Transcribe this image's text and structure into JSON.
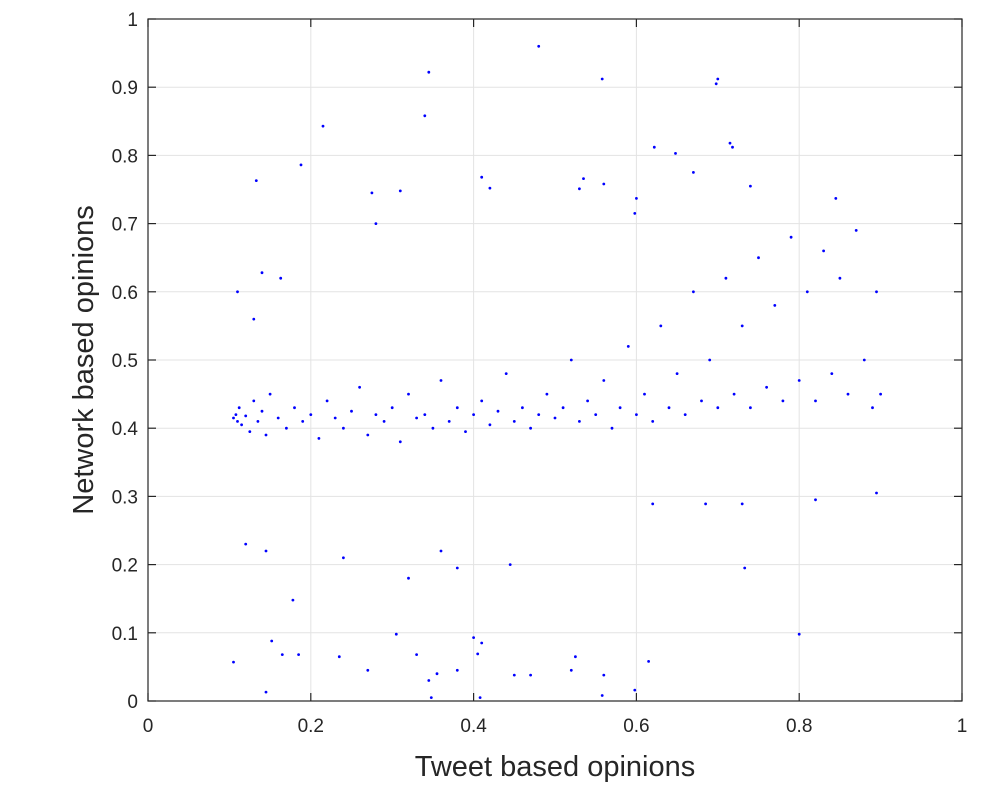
{
  "chart_data": {
    "type": "scatter",
    "title": "",
    "xlabel": "Tweet based opinions",
    "ylabel": "Network based opinions",
    "xlim": [
      0,
      1
    ],
    "ylim": [
      0,
      1
    ],
    "xticks": [
      0,
      0.2,
      0.4,
      0.6,
      0.8,
      1
    ],
    "xtick_labels": [
      "0",
      "0.2",
      "0.4",
      "0.6",
      "0.8",
      "1"
    ],
    "yticks": [
      0,
      0.1,
      0.2,
      0.3,
      0.4,
      0.5,
      0.6,
      0.7,
      0.8,
      0.9,
      1
    ],
    "ytick_labels": [
      "0",
      "0.1",
      "0.2",
      "0.3",
      "0.4",
      "0.5",
      "0.6",
      "0.7",
      "0.8",
      "0.9",
      "1"
    ],
    "grid": true,
    "legend": "none",
    "marker_color": "#0000ff",
    "series": [
      {
        "points": [
          [
            0.105,
            0.415
          ],
          [
            0.108,
            0.42
          ],
          [
            0.11,
            0.41
          ],
          [
            0.112,
            0.43
          ],
          [
            0.115,
            0.405
          ],
          [
            0.12,
            0.418
          ],
          [
            0.125,
            0.395
          ],
          [
            0.13,
            0.44
          ],
          [
            0.135,
            0.41
          ],
          [
            0.14,
            0.425
          ],
          [
            0.145,
            0.39
          ],
          [
            0.15,
            0.45
          ],
          [
            0.16,
            0.415
          ],
          [
            0.17,
            0.4
          ],
          [
            0.18,
            0.43
          ],
          [
            0.19,
            0.41
          ],
          [
            0.2,
            0.42
          ],
          [
            0.21,
            0.385
          ],
          [
            0.22,
            0.44
          ],
          [
            0.23,
            0.415
          ],
          [
            0.24,
            0.4
          ],
          [
            0.25,
            0.425
          ],
          [
            0.26,
            0.46
          ],
          [
            0.27,
            0.39
          ],
          [
            0.28,
            0.42
          ],
          [
            0.29,
            0.41
          ],
          [
            0.3,
            0.43
          ],
          [
            0.31,
            0.38
          ],
          [
            0.32,
            0.45
          ],
          [
            0.33,
            0.415
          ],
          [
            0.34,
            0.42
          ],
          [
            0.35,
            0.4
          ],
          [
            0.36,
            0.47
          ],
          [
            0.37,
            0.41
          ],
          [
            0.38,
            0.43
          ],
          [
            0.39,
            0.395
          ],
          [
            0.4,
            0.42
          ],
          [
            0.41,
            0.44
          ],
          [
            0.42,
            0.405
          ],
          [
            0.43,
            0.425
          ],
          [
            0.44,
            0.48
          ],
          [
            0.45,
            0.41
          ],
          [
            0.46,
            0.43
          ],
          [
            0.47,
            0.4
          ],
          [
            0.48,
            0.42
          ],
          [
            0.49,
            0.45
          ],
          [
            0.5,
            0.415
          ],
          [
            0.51,
            0.43
          ],
          [
            0.52,
            0.5
          ],
          [
            0.53,
            0.41
          ],
          [
            0.54,
            0.44
          ],
          [
            0.55,
            0.42
          ],
          [
            0.56,
            0.47
          ],
          [
            0.57,
            0.4
          ],
          [
            0.58,
            0.43
          ],
          [
            0.59,
            0.52
          ],
          [
            0.6,
            0.42
          ],
          [
            0.61,
            0.45
          ],
          [
            0.62,
            0.41
          ],
          [
            0.63,
            0.55
          ],
          [
            0.64,
            0.43
          ],
          [
            0.65,
            0.48
          ],
          [
            0.66,
            0.42
          ],
          [
            0.67,
            0.6
          ],
          [
            0.68,
            0.44
          ],
          [
            0.69,
            0.5
          ],
          [
            0.7,
            0.43
          ],
          [
            0.71,
            0.62
          ],
          [
            0.72,
            0.45
          ],
          [
            0.73,
            0.55
          ],
          [
            0.74,
            0.43
          ],
          [
            0.75,
            0.65
          ],
          [
            0.76,
            0.46
          ],
          [
            0.77,
            0.58
          ],
          [
            0.78,
            0.44
          ],
          [
            0.79,
            0.68
          ],
          [
            0.8,
            0.47
          ],
          [
            0.81,
            0.6
          ],
          [
            0.82,
            0.44
          ],
          [
            0.83,
            0.66
          ],
          [
            0.84,
            0.48
          ],
          [
            0.85,
            0.62
          ],
          [
            0.86,
            0.45
          ],
          [
            0.87,
            0.69
          ],
          [
            0.88,
            0.5
          ],
          [
            0.89,
            0.43
          ],
          [
            0.895,
            0.6
          ],
          [
            0.9,
            0.45
          ],
          [
            0.48,
            0.96
          ],
          [
            0.345,
            0.922
          ],
          [
            0.558,
            0.912
          ],
          [
            0.7,
            0.912
          ],
          [
            0.698,
            0.905
          ],
          [
            0.34,
            0.858
          ],
          [
            0.215,
            0.843
          ],
          [
            0.715,
            0.818
          ],
          [
            0.622,
            0.812
          ],
          [
            0.718,
            0.812
          ],
          [
            0.648,
            0.803
          ],
          [
            0.188,
            0.786
          ],
          [
            0.67,
            0.775
          ],
          [
            0.133,
            0.763
          ],
          [
            0.41,
            0.768
          ],
          [
            0.42,
            0.752
          ],
          [
            0.56,
            0.758
          ],
          [
            0.535,
            0.766
          ],
          [
            0.53,
            0.751
          ],
          [
            0.31,
            0.748
          ],
          [
            0.275,
            0.745
          ],
          [
            0.74,
            0.755
          ],
          [
            0.845,
            0.737
          ],
          [
            0.6,
            0.737
          ],
          [
            0.598,
            0.715
          ],
          [
            0.28,
            0.7
          ],
          [
            0.11,
            0.6
          ],
          [
            0.13,
            0.56
          ],
          [
            0.14,
            0.628
          ],
          [
            0.163,
            0.62
          ],
          [
            0.105,
            0.057
          ],
          [
            0.145,
            0.013
          ],
          [
            0.152,
            0.088
          ],
          [
            0.165,
            0.068
          ],
          [
            0.178,
            0.148
          ],
          [
            0.185,
            0.068
          ],
          [
            0.235,
            0.065
          ],
          [
            0.27,
            0.045
          ],
          [
            0.305,
            0.098
          ],
          [
            0.32,
            0.18
          ],
          [
            0.33,
            0.068
          ],
          [
            0.345,
            0.03
          ],
          [
            0.348,
            0.005
          ],
          [
            0.355,
            0.04
          ],
          [
            0.38,
            0.045
          ],
          [
            0.4,
            0.093
          ],
          [
            0.405,
            0.069
          ],
          [
            0.41,
            0.085
          ],
          [
            0.408,
            0.005
          ],
          [
            0.45,
            0.038
          ],
          [
            0.47,
            0.038
          ],
          [
            0.52,
            0.045
          ],
          [
            0.525,
            0.065
          ],
          [
            0.558,
            0.008
          ],
          [
            0.56,
            0.038
          ],
          [
            0.598,
            0.016
          ],
          [
            0.615,
            0.058
          ],
          [
            0.8,
            0.098
          ],
          [
            0.62,
            0.289
          ],
          [
            0.685,
            0.289
          ],
          [
            0.733,
            0.195
          ],
          [
            0.73,
            0.289
          ],
          [
            0.82,
            0.295
          ],
          [
            0.895,
            0.305
          ],
          [
            0.12,
            0.23
          ],
          [
            0.145,
            0.22
          ],
          [
            0.24,
            0.21
          ],
          [
            0.36,
            0.22
          ],
          [
            0.445,
            0.2
          ],
          [
            0.38,
            0.195
          ]
        ]
      }
    ]
  }
}
